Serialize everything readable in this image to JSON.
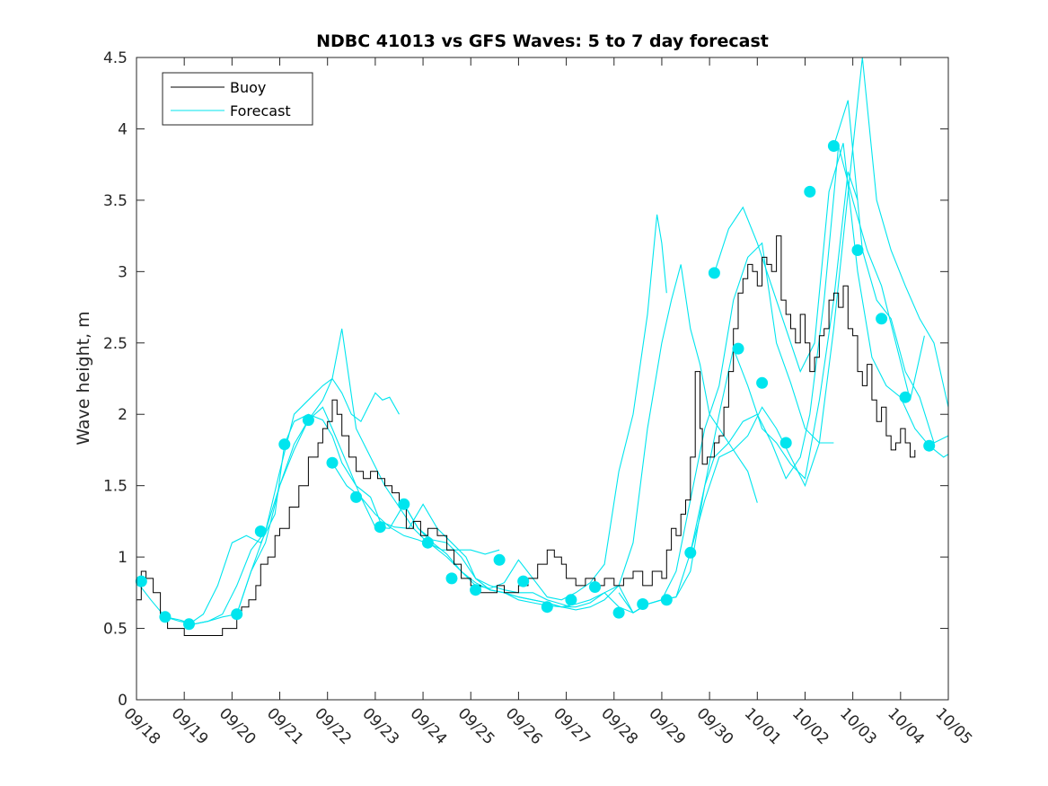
{
  "chart_data": {
    "type": "line",
    "title": "NDBC 41013 vs GFS Waves: 5 to 7 day forecast",
    "xlabel": "",
    "ylabel": "Wave height, m",
    "xlim": [
      0,
      17
    ],
    "ylim": [
      0,
      4.5
    ],
    "x_tick_labels": [
      "09/18",
      "09/19",
      "09/20",
      "09/21",
      "09/22",
      "09/23",
      "09/24",
      "09/25",
      "09/26",
      "09/27",
      "09/28",
      "09/29",
      "09/30",
      "10/01",
      "10/02",
      "10/03",
      "10/04",
      "10/05"
    ],
    "y_ticks": [
      0,
      0.5,
      1,
      1.5,
      2,
      2.5,
      3,
      3.5,
      4,
      4.5
    ],
    "y_tick_labels": [
      "0",
      "0.5",
      "1",
      "1.5",
      "2",
      "2.5",
      "3",
      "3.5",
      "4",
      "4.5"
    ],
    "legend": {
      "position": "top-left",
      "entries": [
        "Buoy",
        "Forecast"
      ]
    },
    "colors": {
      "buoy": "#000000",
      "forecast": "#00e5ee"
    },
    "series": [
      {
        "name": "Buoy",
        "x": [
          0,
          0.1,
          0.2,
          0.35,
          0.5,
          0.65,
          0.8,
          1.0,
          1.2,
          1.4,
          1.6,
          1.8,
          2.0,
          2.1,
          2.2,
          2.35,
          2.5,
          2.6,
          2.75,
          2.9,
          3.0,
          3.2,
          3.4,
          3.6,
          3.8,
          3.9,
          4.0,
          4.1,
          4.2,
          4.3,
          4.45,
          4.6,
          4.75,
          4.9,
          5.05,
          5.2,
          5.35,
          5.5,
          5.65,
          5.8,
          5.95,
          6.1,
          6.3,
          6.5,
          6.65,
          6.8,
          7.0,
          7.2,
          7.4,
          7.55,
          7.7,
          7.85,
          8.0,
          8.2,
          8.4,
          8.6,
          8.75,
          8.9,
          9.0,
          9.2,
          9.4,
          9.6,
          9.8,
          10.0,
          10.2,
          10.4,
          10.6,
          10.8,
          11.0,
          11.1,
          11.2,
          11.3,
          11.4,
          11.5,
          11.6,
          11.7,
          11.8,
          11.85,
          11.95,
          12.1,
          12.2,
          12.3,
          12.4,
          12.5,
          12.6,
          12.7,
          12.8,
          12.9,
          13.0,
          13.1,
          13.2,
          13.3,
          13.4,
          13.5,
          13.6,
          13.7,
          13.8,
          13.9,
          14.0,
          14.1,
          14.2,
          14.3,
          14.4,
          14.5,
          14.6,
          14.7,
          14.8,
          14.9,
          15.0,
          15.1,
          15.2,
          15.3,
          15.4,
          15.5,
          15.6,
          15.7,
          15.8,
          15.9,
          16.0,
          16.1,
          16.2,
          16.3
        ],
        "values": [
          0.7,
          0.9,
          0.85,
          0.75,
          0.6,
          0.5,
          0.5,
          0.45,
          0.45,
          0.45,
          0.45,
          0.5,
          0.5,
          0.6,
          0.65,
          0.7,
          0.8,
          0.95,
          1.0,
          1.15,
          1.2,
          1.35,
          1.5,
          1.7,
          1.8,
          1.9,
          1.95,
          2.1,
          2.0,
          1.85,
          1.7,
          1.6,
          1.55,
          1.6,
          1.55,
          1.5,
          1.45,
          1.35,
          1.2,
          1.25,
          1.15,
          1.2,
          1.15,
          1.05,
          0.95,
          0.85,
          0.8,
          0.75,
          0.75,
          0.8,
          0.75,
          0.75,
          0.8,
          0.85,
          0.95,
          1.05,
          1.0,
          0.95,
          0.85,
          0.8,
          0.85,
          0.8,
          0.85,
          0.8,
          0.85,
          0.9,
          0.8,
          0.9,
          0.85,
          1.05,
          1.2,
          1.15,
          1.3,
          1.4,
          1.7,
          2.3,
          1.9,
          1.65,
          1.7,
          1.8,
          1.85,
          2.05,
          2.3,
          2.6,
          2.85,
          2.95,
          3.05,
          3.0,
          2.9,
          3.1,
          3.05,
          3.0,
          3.25,
          2.8,
          2.7,
          2.6,
          2.5,
          2.7,
          2.5,
          2.3,
          2.4,
          2.55,
          2.6,
          2.8,
          2.85,
          2.75,
          2.9,
          2.6,
          2.55,
          2.3,
          2.2,
          2.35,
          2.1,
          1.95,
          2.05,
          1.85,
          1.75,
          1.8,
          1.9,
          1.8,
          1.7,
          1.75
        ]
      },
      {
        "name": "Forecast 1",
        "x": [
          0.0,
          0.3,
          0.6,
          0.9,
          1.2,
          1.5,
          1.8,
          2.1,
          2.4,
          2.7,
          3.0,
          3.3,
          3.6,
          3.9,
          4.1,
          4.3,
          4.5,
          4.7,
          4.85,
          5.0,
          5.15,
          5.3,
          5.5
        ],
        "values": [
          0.83,
          0.7,
          0.58,
          0.56,
          0.53,
          0.55,
          0.6,
          0.8,
          1.05,
          1.18,
          1.6,
          2.0,
          2.1,
          2.2,
          2.25,
          2.15,
          2.0,
          1.95,
          2.05,
          2.15,
          2.1,
          2.12,
          2.0
        ]
      },
      {
        "name": "Forecast 2",
        "x": [
          0.6,
          0.9,
          1.2,
          1.5,
          1.8,
          2.1,
          2.4,
          2.7,
          3.0,
          3.3,
          3.6,
          3.9,
          4.1,
          4.3,
          4.6,
          4.9,
          5.2,
          5.5,
          5.8,
          6.1,
          6.4,
          6.7,
          7.0,
          7.3,
          7.6
        ],
        "values": [
          0.58,
          0.55,
          0.53,
          0.55,
          0.58,
          0.6,
          0.9,
          1.18,
          1.5,
          1.79,
          1.96,
          2.1,
          2.25,
          2.6,
          1.9,
          1.7,
          1.5,
          1.35,
          1.2,
          1.1,
          1.05,
          1.05,
          1.05,
          1.02,
          1.05
        ]
      },
      {
        "name": "Forecast 3",
        "x": [
          1.1,
          1.4,
          1.7,
          2.0,
          2.3,
          2.6,
          2.9,
          3.1,
          3.3,
          3.6,
          3.9,
          4.1,
          4.3,
          4.6,
          4.9,
          5.1,
          5.4,
          5.7,
          6.0,
          6.3,
          6.6,
          6.9,
          7.1,
          7.4,
          7.7,
          8.0,
          8.3,
          8.6,
          8.9,
          9.1
        ],
        "values": [
          0.53,
          0.6,
          0.8,
          1.1,
          1.15,
          1.1,
          1.3,
          1.79,
          1.95,
          2.0,
          1.96,
          1.85,
          1.66,
          1.5,
          1.42,
          1.25,
          1.21,
          1.2,
          1.37,
          1.2,
          1.1,
          1.0,
          0.85,
          0.8,
          0.77,
          0.75,
          0.75,
          0.7,
          0.67,
          0.65
        ]
      },
      {
        "name": "Forecast 4",
        "x": [
          2.1,
          2.4,
          2.7,
          3.0,
          3.3,
          3.6,
          3.9,
          4.1,
          4.4,
          4.7,
          5.0,
          5.3,
          5.6,
          5.9,
          6.2,
          6.5,
          6.8,
          7.1,
          7.4,
          7.7,
          8.0,
          8.3,
          8.6,
          8.9,
          9.2,
          9.5,
          9.8,
          10.1,
          10.4,
          10.7,
          10.9,
          11.0,
          11.1
        ],
        "values": [
          0.6,
          0.9,
          1.1,
          1.5,
          1.75,
          1.96,
          2.05,
          1.9,
          1.66,
          1.42,
          1.21,
          1.2,
          1.37,
          1.2,
          1.1,
          1.02,
          0.9,
          0.8,
          0.78,
          0.82,
          0.98,
          0.85,
          0.72,
          0.7,
          0.75,
          0.82,
          0.95,
          1.6,
          2.0,
          2.7,
          3.4,
          3.2,
          2.85
        ]
      },
      {
        "name": "Forecast 5",
        "x": [
          4.1,
          4.4,
          4.7,
          5.0,
          5.3,
          5.6,
          5.9,
          6.2,
          6.5,
          6.8,
          7.1,
          7.4,
          7.7,
          8.0,
          8.3,
          8.6,
          8.9,
          9.2,
          9.5,
          9.8,
          10.1,
          10.4,
          10.7,
          11.0,
          11.2,
          11.4,
          11.6,
          11.8,
          12.0,
          12.2,
          12.4,
          12.6,
          12.8,
          13.0
        ],
        "values": [
          1.66,
          1.5,
          1.42,
          1.3,
          1.21,
          1.15,
          1.12,
          1.08,
          1.0,
          0.9,
          0.82,
          0.77,
          0.75,
          0.72,
          0.7,
          0.68,
          0.65,
          0.65,
          0.68,
          0.75,
          0.8,
          1.1,
          1.9,
          2.5,
          2.8,
          3.05,
          2.6,
          2.35,
          2.0,
          1.9,
          1.8,
          1.7,
          1.6,
          1.38
        ]
      },
      {
        "name": "Forecast 6",
        "x": [
          5.6,
          5.9,
          6.2,
          6.5,
          6.8,
          7.1,
          7.4,
          7.7,
          8.0,
          8.3,
          8.6,
          8.9,
          9.2,
          9.5,
          9.8,
          10.1,
          10.4,
          10.7,
          11.0,
          11.3,
          11.6,
          11.9,
          12.2,
          12.5,
          12.8,
          13.1,
          13.4,
          13.7,
          14.0,
          14.3,
          14.6
        ],
        "values": [
          1.37,
          1.2,
          1.12,
          1.1,
          1.0,
          0.85,
          0.77,
          0.75,
          0.72,
          0.7,
          0.68,
          0.65,
          0.63,
          0.65,
          0.7,
          0.8,
          0.61,
          0.67,
          0.7,
          0.9,
          1.4,
          1.9,
          2.2,
          2.8,
          3.1,
          3.2,
          2.5,
          2.22,
          1.9,
          1.8,
          1.8
        ]
      },
      {
        "name": "Forecast 7",
        "x": [
          7.1,
          7.4,
          7.7,
          8.0,
          8.3,
          8.6,
          8.9,
          9.2,
          9.5,
          9.8,
          10.1,
          10.4,
          10.7,
          11.0,
          11.3,
          11.6,
          11.9,
          12.2,
          12.5,
          12.8,
          13.1,
          13.4,
          13.7,
          14.0,
          14.3,
          14.6,
          14.9,
          15.1
        ],
        "values": [
          0.85,
          0.77,
          0.75,
          0.7,
          0.68,
          0.66,
          0.65,
          0.67,
          0.7,
          0.75,
          0.65,
          0.61,
          0.67,
          0.7,
          0.72,
          0.9,
          1.5,
          2.0,
          2.46,
          2.2,
          1.9,
          1.8,
          1.65,
          1.55,
          2.1,
          2.8,
          3.7,
          3.5
        ]
      },
      {
        "name": "Forecast 8",
        "x": [
          10.1,
          10.4,
          10.7,
          11.0,
          11.3,
          11.6,
          11.9,
          12.1,
          12.4,
          12.7,
          13.0,
          13.3,
          13.6,
          13.9,
          14.1,
          14.4,
          14.7,
          15.0,
          15.3,
          15.6,
          15.9,
          16.2,
          16.5
        ],
        "values": [
          0.75,
          0.61,
          0.67,
          0.7,
          0.72,
          1.03,
          1.5,
          1.7,
          1.8,
          1.95,
          2.0,
          1.8,
          1.55,
          1.7,
          2.0,
          2.8,
          3.88,
          3.5,
          3.15,
          2.9,
          2.5,
          2.1,
          2.55
        ]
      },
      {
        "name": "Forecast 9",
        "x": [
          11.6,
          11.9,
          12.2,
          12.5,
          12.8,
          13.1,
          13.4,
          13.7,
          14.0,
          14.3,
          14.6,
          14.9,
          15.2,
          15.5,
          15.8,
          16.1,
          16.4,
          16.7,
          17.0
        ],
        "values": [
          1.03,
          1.4,
          1.7,
          1.75,
          1.85,
          2.05,
          1.9,
          1.7,
          1.5,
          1.8,
          2.6,
          3.55,
          4.5,
          3.5,
          3.15,
          2.9,
          2.67,
          2.5,
          2.05
        ]
      },
      {
        "name": "Forecast 10",
        "x": [
          12.1,
          12.4,
          12.7,
          13.0,
          13.3,
          13.6,
          13.9,
          14.2,
          14.5,
          14.8,
          15.1,
          15.4,
          15.7,
          16.0,
          16.3,
          16.6,
          16.9,
          17.0
        ],
        "values": [
          2.99,
          3.3,
          3.45,
          3.2,
          2.9,
          2.6,
          2.3,
          2.5,
          3.56,
          3.9,
          3.0,
          2.4,
          2.2,
          2.12,
          1.9,
          1.78,
          1.7,
          1.72
        ]
      },
      {
        "name": "Forecast 11",
        "x": [
          14.6,
          14.9,
          15.2,
          15.5,
          15.8,
          16.1,
          16.4,
          16.7,
          17.0
        ],
        "values": [
          3.88,
          4.2,
          3.15,
          2.8,
          2.67,
          2.3,
          2.12,
          1.8,
          1.85
        ]
      }
    ],
    "markers": {
      "x": [
        0.1,
        0.6,
        1.1,
        2.1,
        2.6,
        3.1,
        3.6,
        4.1,
        4.6,
        5.1,
        5.6,
        6.1,
        6.6,
        7.1,
        7.6,
        8.1,
        8.6,
        9.1,
        9.6,
        10.1,
        10.6,
        11.1,
        11.6,
        12.1,
        12.6,
        13.1,
        13.6,
        14.1,
        14.6,
        15.1,
        15.6,
        16.1,
        16.6
      ],
      "values": [
        0.83,
        0.58,
        0.53,
        0.6,
        1.18,
        1.79,
        1.96,
        1.66,
        1.42,
        1.21,
        1.37,
        1.1,
        0.85,
        0.77,
        0.98,
        0.83,
        0.65,
        0.7,
        0.79,
        0.61,
        0.67,
        0.7,
        1.03,
        2.99,
        2.46,
        2.22,
        1.8,
        3.56,
        3.88,
        3.15,
        2.67,
        2.12,
        1.78
      ]
    }
  }
}
